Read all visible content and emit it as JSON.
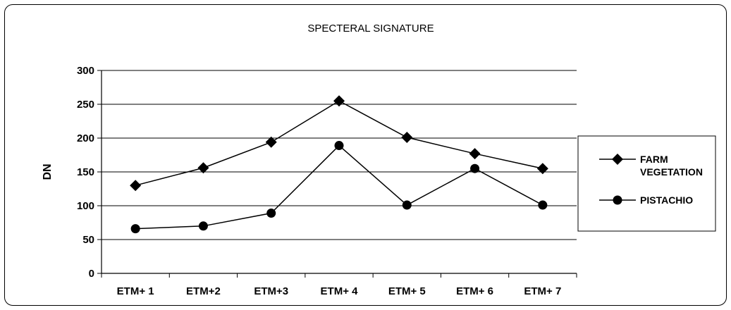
{
  "chart_data": {
    "type": "line",
    "title": "SPECTERAL SIGNATURE",
    "xlabel": "",
    "ylabel": "DN",
    "categories": [
      "ETM+ 1",
      "ETM+2",
      "ETM+3",
      "ETM+ 4",
      "ETM+ 5",
      "ETM+ 6",
      "ETM+ 7"
    ],
    "ylim": [
      0,
      300
    ],
    "yticks": [
      "0",
      "50",
      "100",
      "150",
      "200",
      "250",
      "300"
    ],
    "grid": true,
    "legend_position": "right",
    "series": [
      {
        "name": "FARM VEGETATION",
        "legend_lines": [
          "FARM",
          "VEGETATION"
        ],
        "marker": "diamond",
        "color": "#000000",
        "values": [
          130,
          156,
          194,
          255,
          201,
          177,
          155
        ]
      },
      {
        "name": "PISTACHIO",
        "legend_lines": [
          "PISTACHIO"
        ],
        "marker": "circle",
        "color": "#000000",
        "values": [
          66,
          70,
          89,
          189,
          101,
          155,
          101
        ]
      }
    ]
  }
}
